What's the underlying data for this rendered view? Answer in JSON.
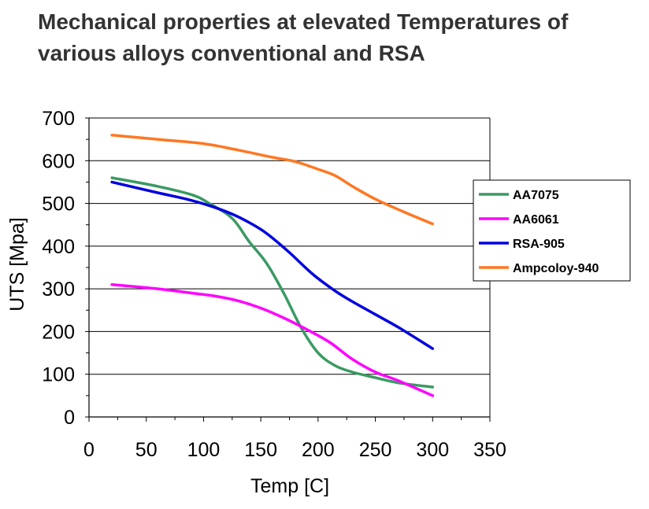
{
  "chart_data": {
    "type": "line",
    "title": "Mechanical properties at elevated Temperatures of various alloys conventional and RSA",
    "xlabel": "Temp [C]",
    "ylabel": "UTS [Mpa]",
    "xlim": [
      0,
      350
    ],
    "ylim": [
      0,
      700
    ],
    "xticks": [
      0,
      50,
      100,
      150,
      200,
      250,
      300,
      350
    ],
    "yticks": [
      0,
      100,
      200,
      300,
      400,
      500,
      600,
      700
    ],
    "grid": "horizontal",
    "legend_position": "right",
    "series": [
      {
        "name": "AA7075",
        "color": "#3a9a63",
        "x": [
          20,
          60,
          90,
          105,
          125,
          140,
          155,
          170,
          185,
          200,
          215,
          230,
          250,
          270,
          300
        ],
        "y": [
          560,
          540,
          520,
          500,
          465,
          410,
          360,
          290,
          210,
          150,
          120,
          105,
          92,
          80,
          70
        ]
      },
      {
        "name": "AA6061",
        "color": "#ff00ff",
        "x": [
          20,
          60,
          90,
          110,
          130,
          150,
          170,
          190,
          210,
          230,
          250,
          270,
          300
        ],
        "y": [
          310,
          300,
          290,
          283,
          272,
          255,
          232,
          205,
          175,
          135,
          105,
          85,
          50
        ]
      },
      {
        "name": "RSA-905",
        "color": "#0000e0",
        "x": [
          20,
          60,
          85,
          105,
          125,
          140,
          155,
          175,
          195,
          215,
          230,
          250,
          270,
          300
        ],
        "y": [
          550,
          525,
          510,
          495,
          475,
          455,
          430,
          385,
          335,
          295,
          270,
          240,
          210,
          160
        ]
      },
      {
        "name": "Ampcoloy-940",
        "color": "#ff7722",
        "x": [
          20,
          60,
          100,
          130,
          160,
          180,
          200,
          215,
          230,
          250,
          275,
          300
        ],
        "y": [
          660,
          650,
          640,
          625,
          608,
          598,
          580,
          565,
          540,
          510,
          480,
          452
        ]
      }
    ]
  }
}
